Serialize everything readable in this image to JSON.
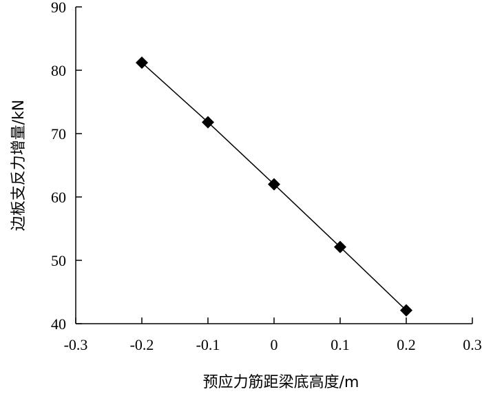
{
  "chart_data": {
    "type": "line",
    "xlabel": "预应力筋距梁底高度/m",
    "ylabel": "边板支反力增量/kN",
    "xlim": [
      -0.3,
      0.3
    ],
    "ylim": [
      40,
      90
    ],
    "x_ticks": [
      "-0.3",
      "-0.2",
      "-0.1",
      "0",
      "0.1",
      "0.2",
      "0.3"
    ],
    "y_ticks": [
      "40",
      "50",
      "60",
      "70",
      "80",
      "90"
    ],
    "grid": false,
    "series": [
      {
        "marker": "diamond",
        "color": "#000000",
        "x": [
          -0.2,
          -0.1,
          0,
          0.1,
          0.2
        ],
        "y": [
          81.2,
          71.8,
          62.0,
          52.1,
          42.1
        ]
      }
    ]
  }
}
